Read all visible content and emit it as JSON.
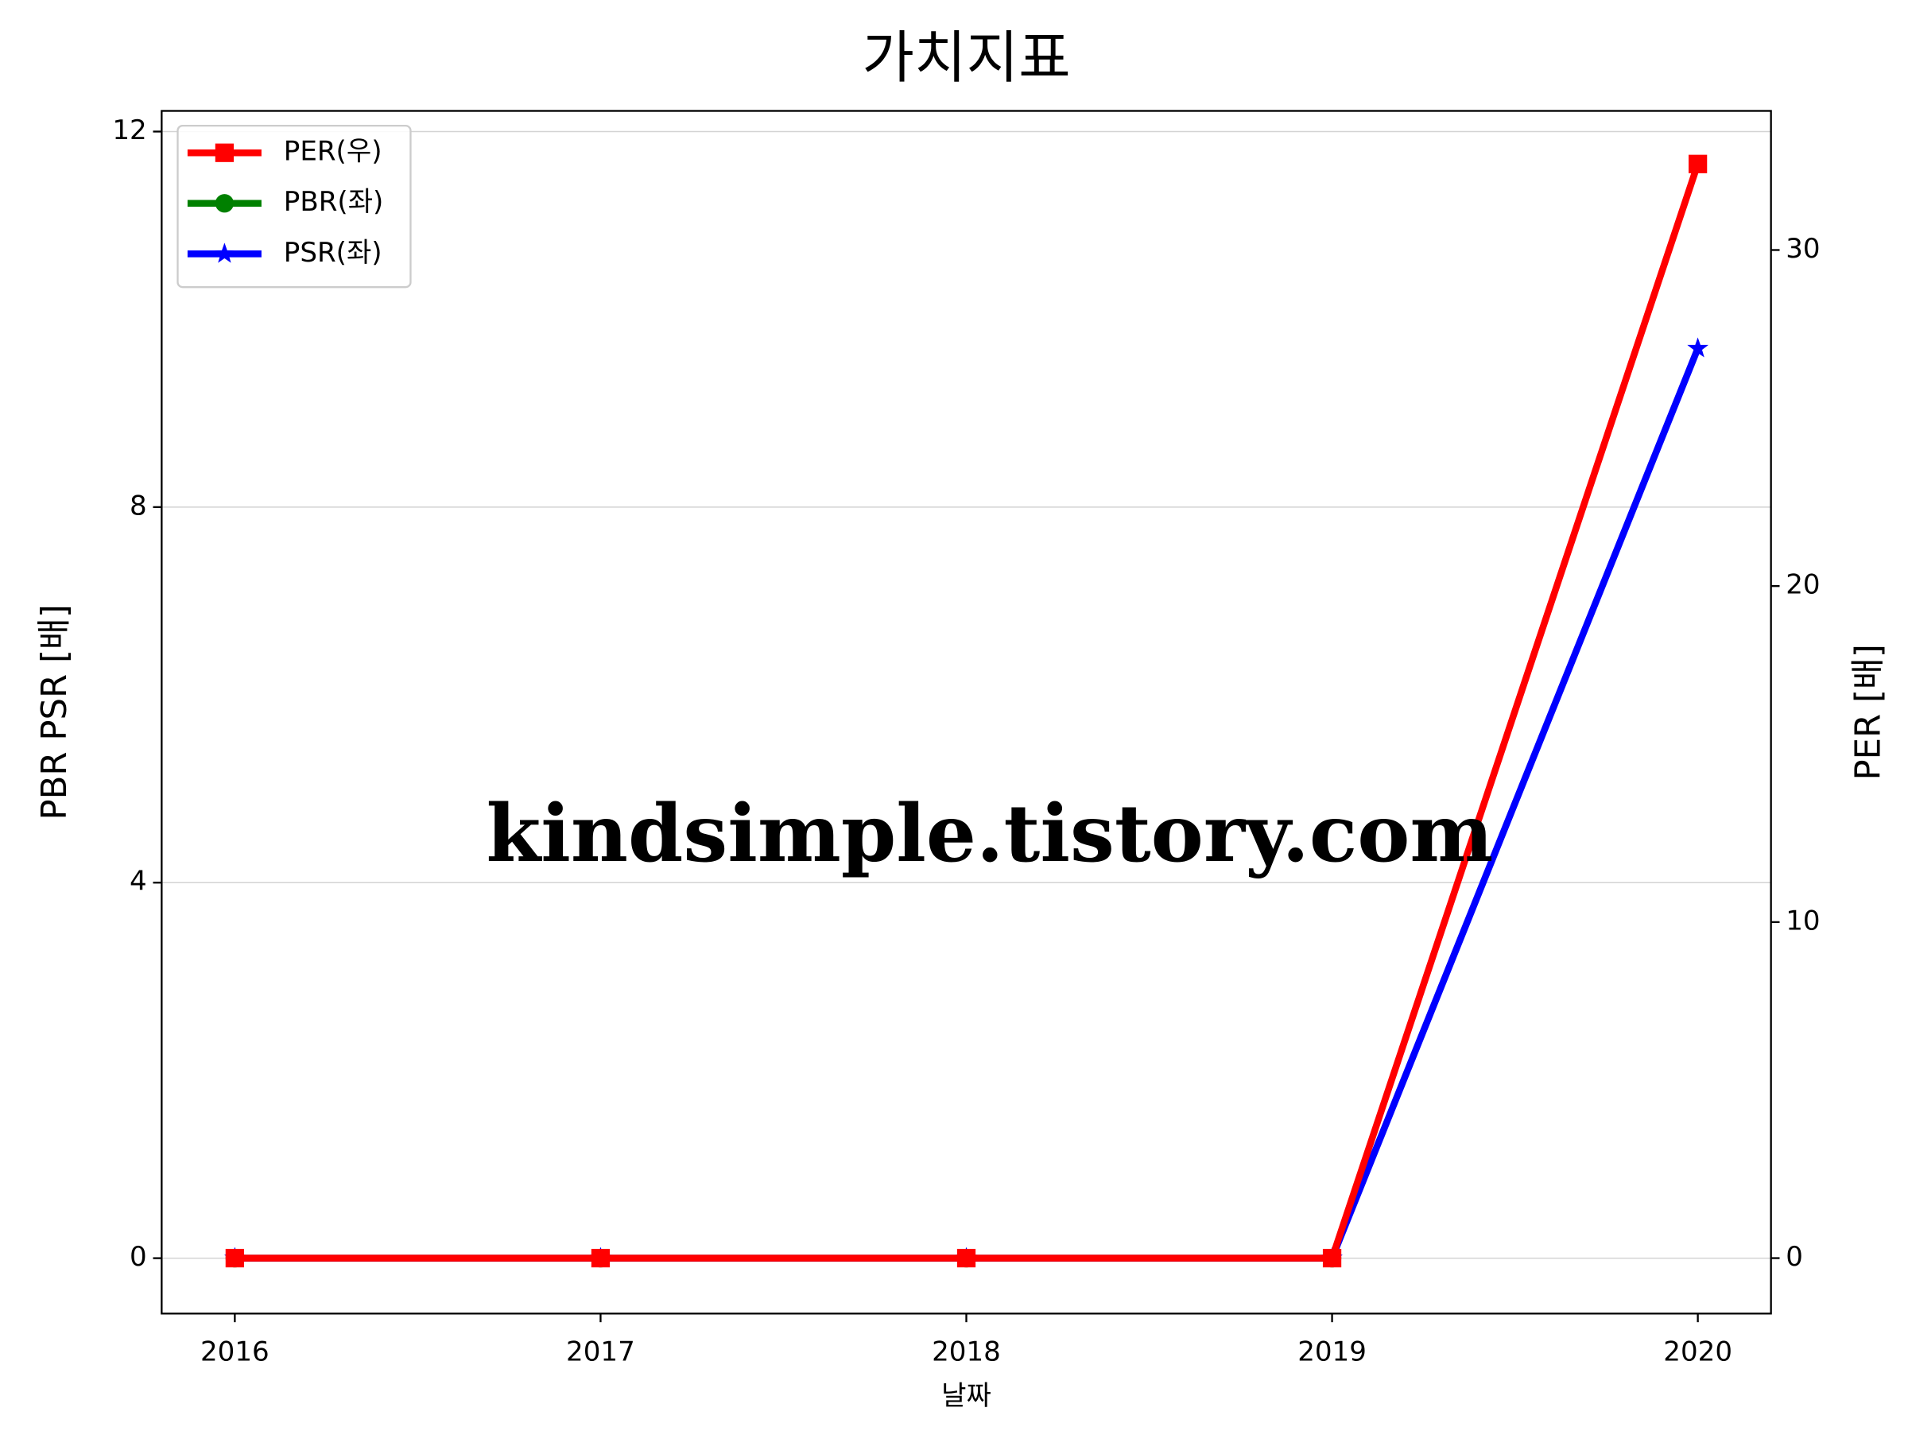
{
  "chart_data": {
    "type": "line",
    "title": "가치지표",
    "xlabel": "날짜",
    "ylabel": "PBR PSR [배]",
    "y2label": "PER [배]",
    "ylabel_color": "#008000",
    "y2label_color": "#ff0000",
    "x": [
      2016,
      2017,
      2018,
      2019,
      2020
    ],
    "series": [
      {
        "name": "PER(우)",
        "color": "#ff0000",
        "marker": "square",
        "axis": "y2",
        "values": [
          0,
          0,
          0,
          0,
          32.56
        ]
      },
      {
        "name": "PBR(좌)",
        "color": "#008000",
        "marker": "circle",
        "values": [
          0,
          0,
          0,
          0,
          null
        ]
      },
      {
        "name": "PSR(좌)",
        "color": "#0000ff",
        "marker": "star",
        "values": [
          0,
          0,
          0,
          0,
          9.69
        ]
      }
    ],
    "xlim": [
      2015.8,
      2020.2
    ],
    "xticks": [
      2016,
      2017,
      2018,
      2019,
      2020
    ],
    "ylim": [
      -0.59,
      12.22
    ],
    "yticks": [
      0,
      4,
      8,
      12
    ],
    "y2lim": [
      -1.65,
      34.14
    ],
    "y2ticks": [
      0,
      10,
      20,
      30
    ],
    "grid": "y",
    "legend": "upper left",
    "watermark": "kindsimple.tistory.com"
  }
}
